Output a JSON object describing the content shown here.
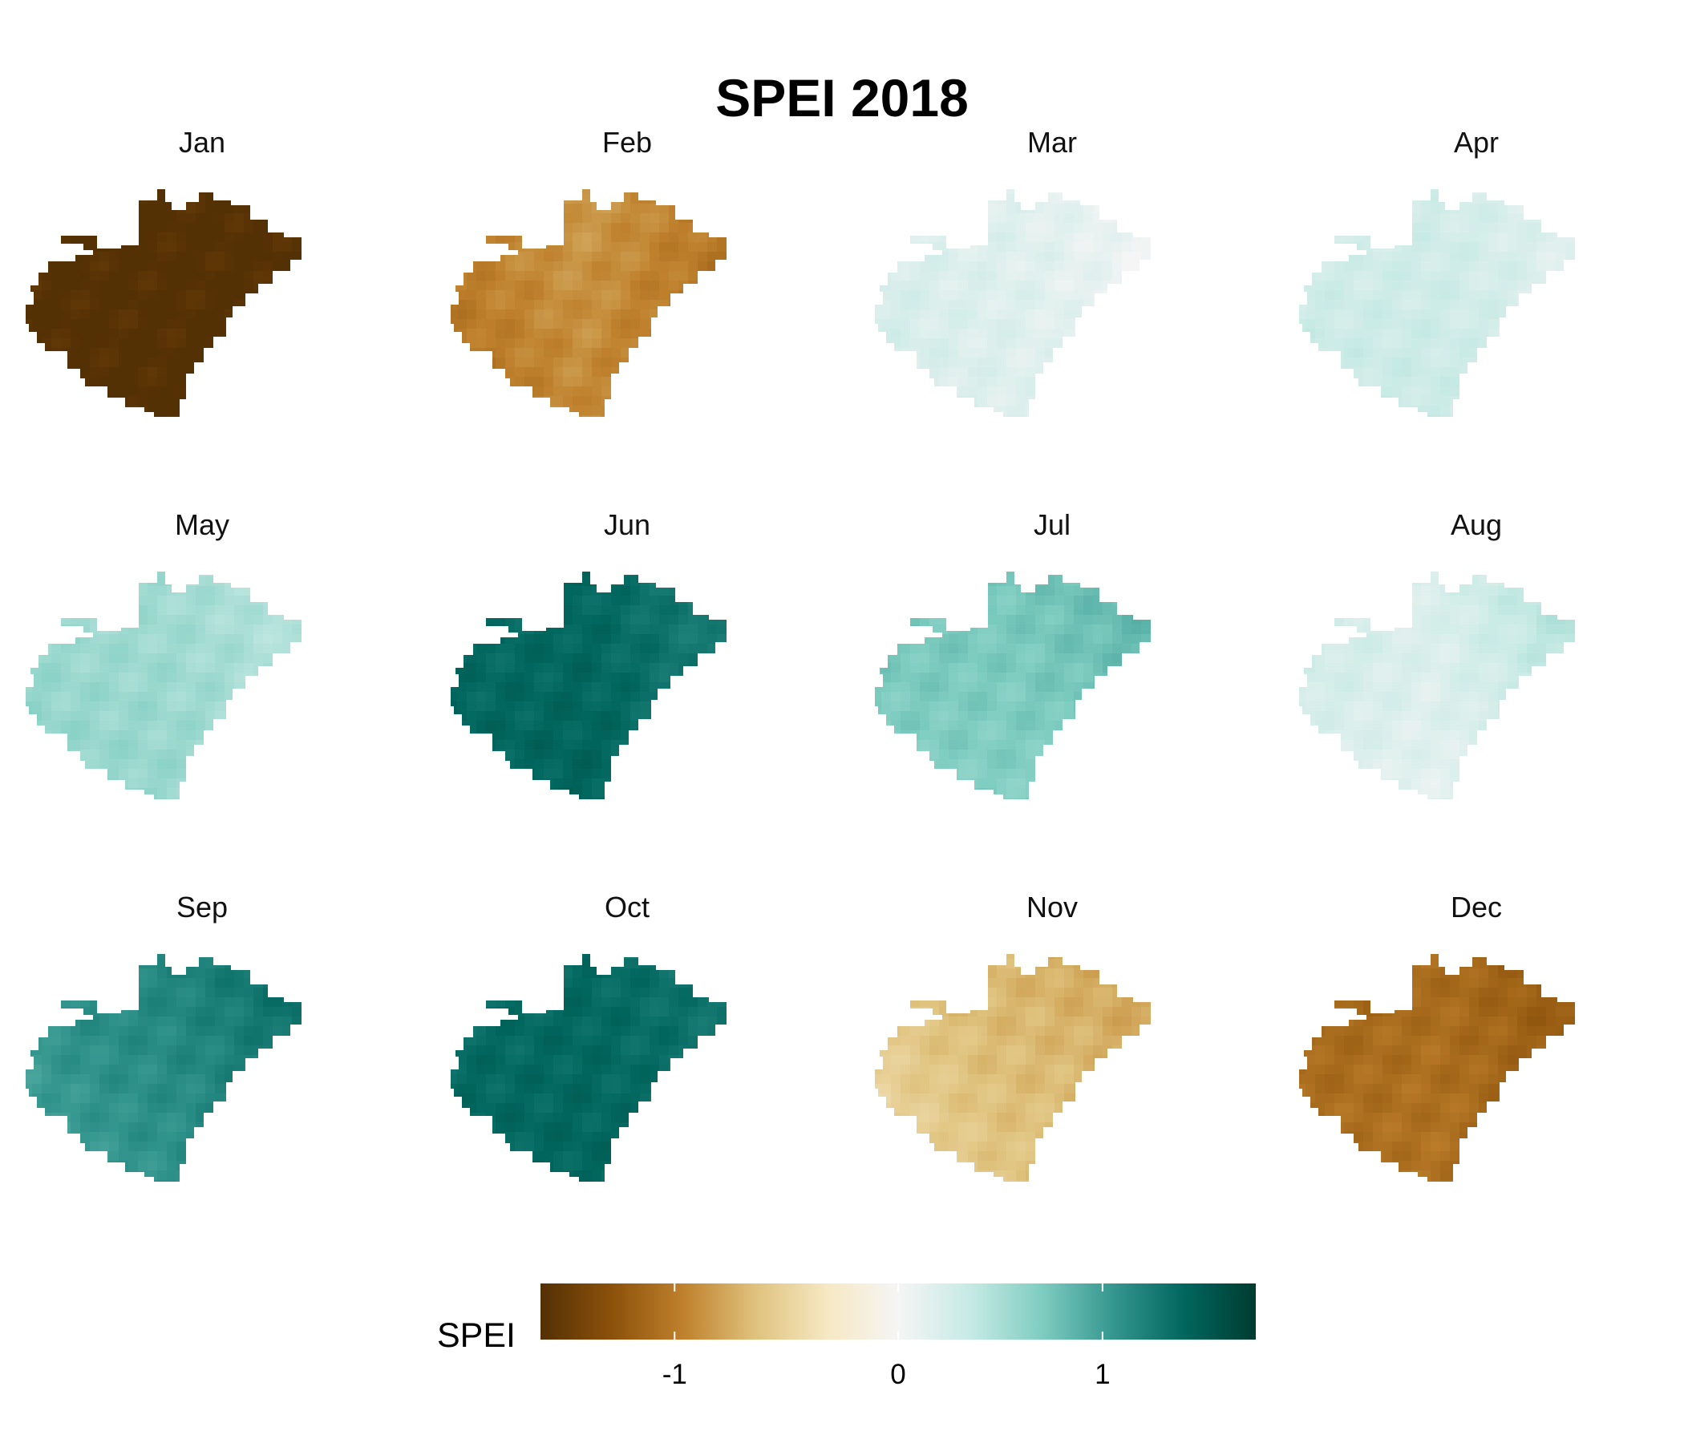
{
  "chart_data": {
    "type": "heatmap",
    "title": "SPEI 2018",
    "panel_order": "3 rows x 4 columns",
    "panels": [
      {
        "label": "Jan",
        "spei": {
          "west": -1.6,
          "center": -1.6,
          "east": -1.6,
          "north": -1.6,
          "south": -1.6
        }
      },
      {
        "label": "Feb",
        "spei": {
          "west": -0.9,
          "center": -0.7,
          "east": -1.0,
          "north": -1.0,
          "south": -1.3
        }
      },
      {
        "label": "Mar",
        "spei": {
          "west": 0.4,
          "center": 0.2,
          "east": -0.05,
          "north": 0.1,
          "south": 0.15
        }
      },
      {
        "label": "Apr",
        "spei": {
          "west": 0.3,
          "center": 0.35,
          "east": 0.05,
          "north": 0.2,
          "south": 0.4
        }
      },
      {
        "label": "May",
        "spei": {
          "west": 0.6,
          "center": 0.6,
          "east": 0.3,
          "north": 0.5,
          "south": 0.7
        }
      },
      {
        "label": "Jun",
        "spei": {
          "west": 1.4,
          "center": 1.5,
          "east": 1.1,
          "north": 1.3,
          "south": 1.45
        }
      },
      {
        "label": "Jul",
        "spei": {
          "west": 0.7,
          "center": 0.65,
          "east": 0.9,
          "north": 0.85,
          "south": 0.6
        }
      },
      {
        "label": "Aug",
        "spei": {
          "west": 0.3,
          "center": 0.0,
          "east": 0.6,
          "north": 0.4,
          "south": 0.05
        }
      },
      {
        "label": "Sep",
        "spei": {
          "west": 0.9,
          "center": 1.1,
          "east": 1.5,
          "north": 1.3,
          "south": 0.9
        }
      },
      {
        "label": "Oct",
        "spei": {
          "west": 1.4,
          "center": 1.45,
          "east": 1.25,
          "north": 1.3,
          "south": 1.4
        }
      },
      {
        "label": "Nov",
        "spei": {
          "west": -0.4,
          "center": -0.7,
          "east": -0.9,
          "north": -0.8,
          "south": -0.4
        }
      },
      {
        "label": "Dec",
        "spei": {
          "west": -1.1,
          "center": -1.0,
          "east": -1.3,
          "north": -1.2,
          "south": -1.0
        }
      }
    ],
    "legend": {
      "title": "SPEI",
      "range": [
        -1.6,
        1.75
      ],
      "ticks": [
        {
          "value": -1,
          "label": "-1"
        },
        {
          "value": 0,
          "label": "0"
        },
        {
          "value": 1,
          "label": "1"
        }
      ],
      "placement": "bottom",
      "colors": [
        "#543005",
        "#8c510a",
        "#bf812d",
        "#dfc27d",
        "#f6e8c3",
        "#f5f5f5",
        "#c7eae5",
        "#80cdc1",
        "#35978f",
        "#01665e",
        "#003c30"
      ]
    }
  }
}
